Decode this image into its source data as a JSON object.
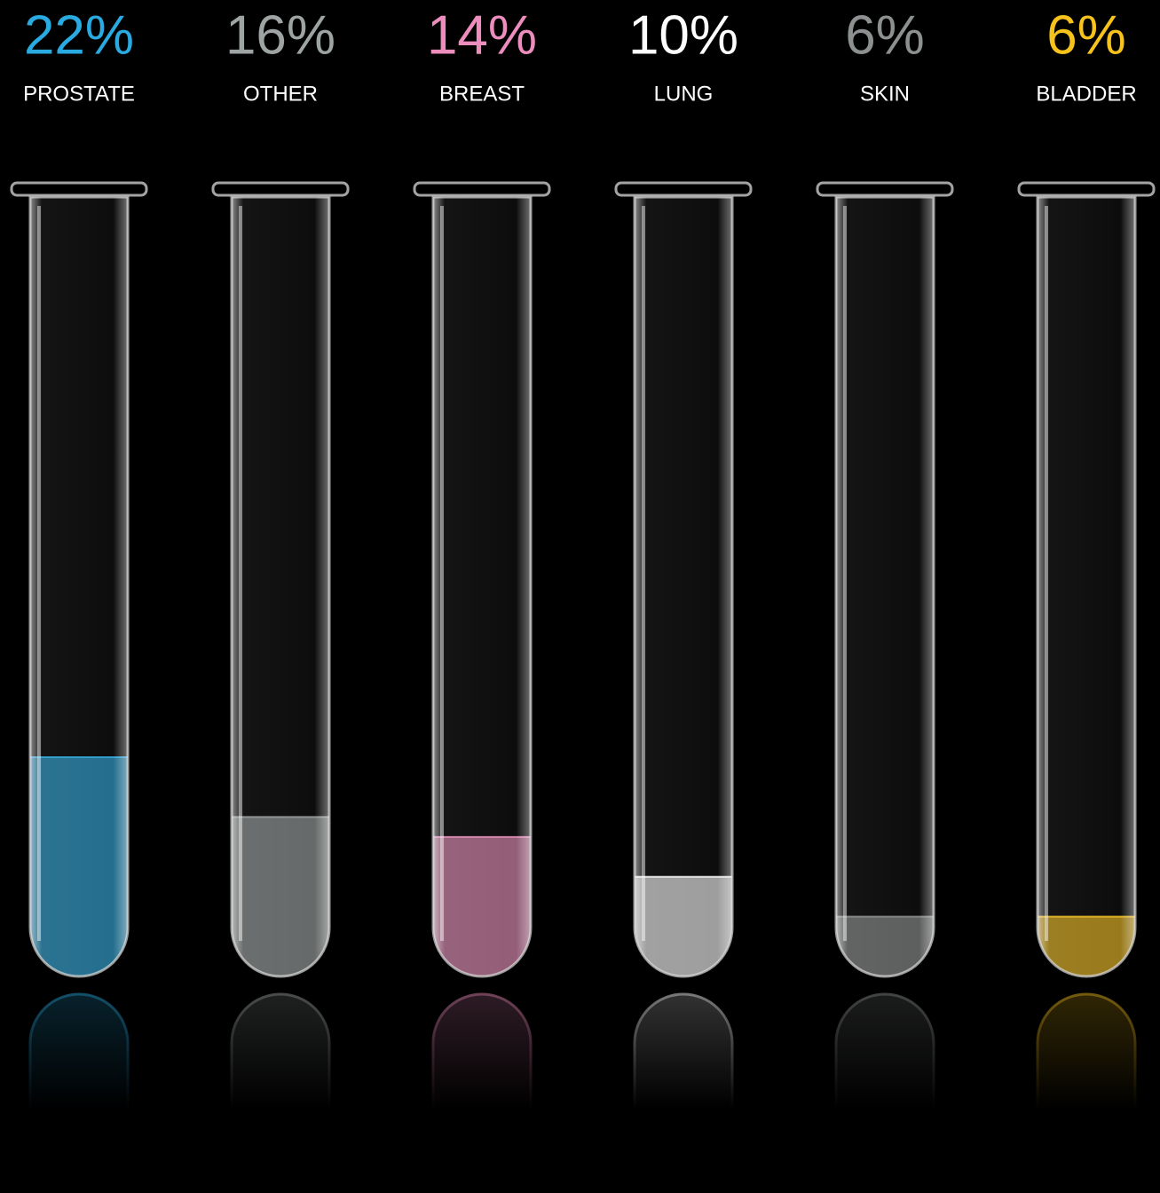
{
  "chart_data": {
    "type": "bar",
    "categories": [
      "PROSTATE",
      "OTHER",
      "BREAST",
      "LUNG",
      "SKIN",
      "BLADDER"
    ],
    "values": [
      22,
      16,
      14,
      10,
      6,
      6
    ],
    "value_labels": [
      "22%",
      "16%",
      "14%",
      "10%",
      "6%",
      "6%"
    ],
    "colors": [
      "#29abe2",
      "#9ea3a3",
      "#ec8dbd",
      "#ffffff",
      "#8d9090",
      "#f7c21b"
    ]
  }
}
